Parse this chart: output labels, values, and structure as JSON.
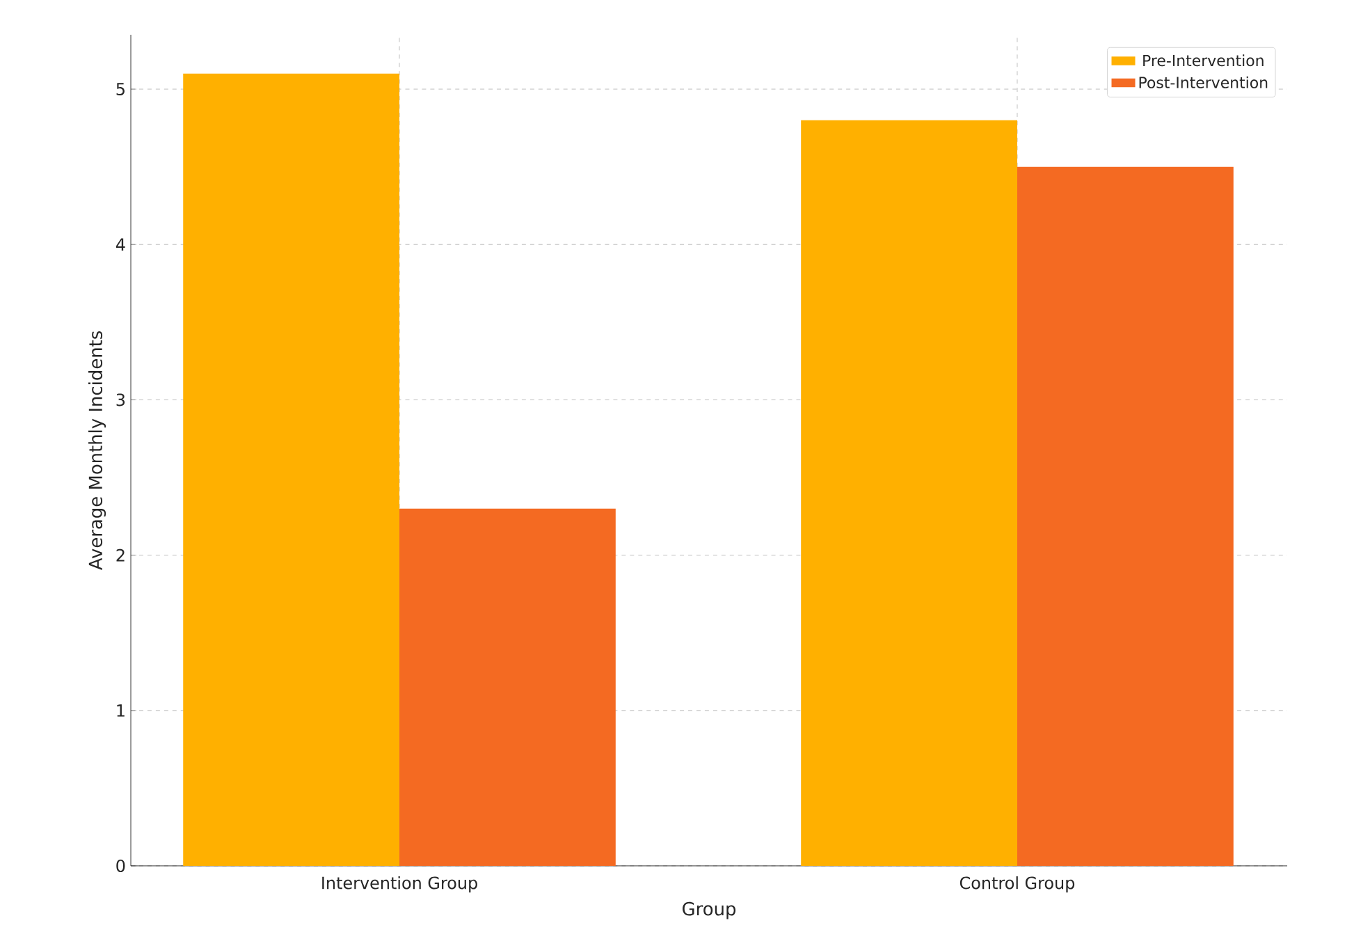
{
  "chart_data": {
    "type": "bar",
    "xlabel": "Group",
    "ylabel": "Average Monthly Incidents",
    "categories": [
      "Intervention Group",
      "Control Group"
    ],
    "series": [
      {
        "name": "Pre-Intervention",
        "color": "#ffb000",
        "values": [
          5.1,
          4.8
        ]
      },
      {
        "name": "Post-Intervention",
        "color": "#f46a22",
        "values": [
          2.3,
          4.5
        ]
      }
    ],
    "ylim": [
      0,
      5.35
    ],
    "yticks": [
      0,
      1,
      2,
      3,
      4,
      5
    ],
    "grid": true,
    "legend": "top right"
  }
}
